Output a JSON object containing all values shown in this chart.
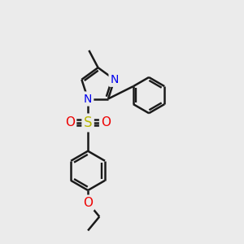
{
  "bg_color": "#ebebeb",
  "bond_color": "#1a1a1a",
  "bond_width": 1.8,
  "atom_colors": {
    "N": "#0000ee",
    "S": "#b8b800",
    "O": "#ee0000",
    "C": "#1a1a1a"
  }
}
